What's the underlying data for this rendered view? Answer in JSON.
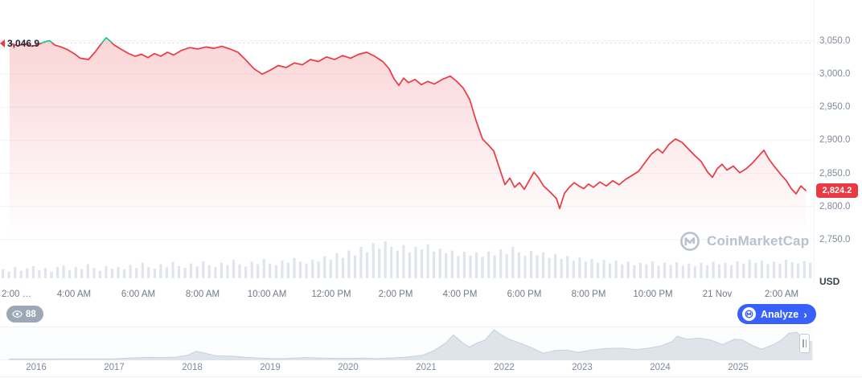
{
  "colors": {
    "line_red": "#ea3943",
    "line_green": "#16c784",
    "accent_blue": "#3861fb",
    "badge_red": "#ea3943",
    "axis_text": "#808a9d",
    "volume_bar": "#e0e5ed",
    "nav_fill": "#dfe4eb",
    "nav_stroke": "#c9d0da"
  },
  "watermark": {
    "text": "CoinMarketCap"
  },
  "buttons": {
    "watch_count": "88",
    "analyze_label": "Analyze",
    "analyze_chevron": "›"
  },
  "axis": {
    "unit_label": "USD"
  },
  "chart_data": {
    "type": "line",
    "unit": "USD",
    "reference_open_price": 3046.9,
    "open_price_label": "3,046.9",
    "last_price": 2824.2,
    "last_price_label": "2,824.2",
    "ylim": [
      2750,
      3050
    ],
    "xlim_hours": [
      0,
      24.75
    ],
    "grid": "horizontal",
    "legend": "none",
    "y_ticks": [
      {
        "value": 3050,
        "label": "3,050.0"
      },
      {
        "value": 3000,
        "label": "3,000.0"
      },
      {
        "value": 2950,
        "label": "2,950.0"
      },
      {
        "value": 2900,
        "label": "2,900.0"
      },
      {
        "value": 2850,
        "label": "2,850.0"
      },
      {
        "value": 2800,
        "label": "2,800.0"
      },
      {
        "value": 2750,
        "label": "2,750.0"
      }
    ],
    "x_ticks": [
      {
        "t": 0,
        "label": "2:00 …"
      },
      {
        "t": 2,
        "label": "4:00 AM"
      },
      {
        "t": 4,
        "label": "6:00 AM"
      },
      {
        "t": 6,
        "label": "8:00 AM"
      },
      {
        "t": 8,
        "label": "10:00 AM"
      },
      {
        "t": 10,
        "label": "12:00 PM"
      },
      {
        "t": 12,
        "label": "2:00 PM"
      },
      {
        "t": 14,
        "label": "4:00 PM"
      },
      {
        "t": 16,
        "label": "6:00 PM"
      },
      {
        "t": 18,
        "label": "8:00 PM"
      },
      {
        "t": 20,
        "label": "10:00 PM"
      },
      {
        "t": 22,
        "label": "21 Nov"
      },
      {
        "t": 24,
        "label": "2:00 AM"
      }
    ],
    "series": [
      {
        "name": "price_usd",
        "points": [
          [
            0,
            3046.9
          ],
          [
            0.25,
            3043
          ],
          [
            0.5,
            3046
          ],
          [
            0.7,
            3042
          ],
          [
            0.9,
            3045
          ],
          [
            1.1,
            3049
          ],
          [
            1.25,
            3050.5
          ],
          [
            1.4,
            3044
          ],
          [
            1.6,
            3041
          ],
          [
            1.8,
            3037
          ],
          [
            2.0,
            3031
          ],
          [
            2.2,
            3024
          ],
          [
            2.45,
            3022
          ],
          [
            2.65,
            3033
          ],
          [
            2.85,
            3046
          ],
          [
            3.0,
            3055
          ],
          [
            3.1,
            3051
          ],
          [
            3.25,
            3044
          ],
          [
            3.45,
            3038
          ],
          [
            3.7,
            3031
          ],
          [
            3.9,
            3027
          ],
          [
            4.1,
            3030
          ],
          [
            4.3,
            3025
          ],
          [
            4.5,
            3031
          ],
          [
            4.7,
            3027
          ],
          [
            4.9,
            3033
          ],
          [
            5.1,
            3029
          ],
          [
            5.35,
            3036
          ],
          [
            5.6,
            3040
          ],
          [
            5.85,
            3038
          ],
          [
            6.1,
            3041
          ],
          [
            6.35,
            3039
          ],
          [
            6.6,
            3042
          ],
          [
            6.85,
            3038
          ],
          [
            7.1,
            3033
          ],
          [
            7.35,
            3021
          ],
          [
            7.6,
            3008
          ],
          [
            7.85,
            3000
          ],
          [
            8.1,
            3006
          ],
          [
            8.35,
            3013
          ],
          [
            8.6,
            3010
          ],
          [
            8.85,
            3017
          ],
          [
            9.1,
            3014
          ],
          [
            9.35,
            3022
          ],
          [
            9.6,
            3019
          ],
          [
            9.85,
            3026
          ],
          [
            10.1,
            3022
          ],
          [
            10.35,
            3028
          ],
          [
            10.6,
            3024
          ],
          [
            10.85,
            3030
          ],
          [
            11.1,
            3033
          ],
          [
            11.35,
            3027
          ],
          [
            11.6,
            3019
          ],
          [
            11.8,
            3008
          ],
          [
            11.95,
            2993
          ],
          [
            12.1,
            2983
          ],
          [
            12.25,
            2994
          ],
          [
            12.4,
            2987
          ],
          [
            12.6,
            2992
          ],
          [
            12.8,
            2984
          ],
          [
            13.0,
            2989
          ],
          [
            13.2,
            2985
          ],
          [
            13.45,
            2992
          ],
          [
            13.7,
            2997
          ],
          [
            13.9,
            2989
          ],
          [
            14.1,
            2979
          ],
          [
            14.3,
            2962
          ],
          [
            14.5,
            2930
          ],
          [
            14.7,
            2902
          ],
          [
            14.9,
            2892
          ],
          [
            15.05,
            2884
          ],
          [
            15.2,
            2862
          ],
          [
            15.4,
            2833
          ],
          [
            15.55,
            2843
          ],
          [
            15.7,
            2829
          ],
          [
            15.85,
            2836
          ],
          [
            16.0,
            2826
          ],
          [
            16.15,
            2839
          ],
          [
            16.3,
            2852
          ],
          [
            16.45,
            2843
          ],
          [
            16.6,
            2831
          ],
          [
            16.8,
            2822
          ],
          [
            17.0,
            2812
          ],
          [
            17.1,
            2797
          ],
          [
            17.25,
            2820
          ],
          [
            17.4,
            2829
          ],
          [
            17.55,
            2836
          ],
          [
            17.7,
            2831
          ],
          [
            17.85,
            2827
          ],
          [
            18.0,
            2834
          ],
          [
            18.15,
            2829
          ],
          [
            18.35,
            2837
          ],
          [
            18.55,
            2831
          ],
          [
            18.75,
            2839
          ],
          [
            18.95,
            2833
          ],
          [
            19.15,
            2841
          ],
          [
            19.35,
            2847
          ],
          [
            19.55,
            2853
          ],
          [
            19.75,
            2866
          ],
          [
            19.95,
            2879
          ],
          [
            20.15,
            2887
          ],
          [
            20.3,
            2881
          ],
          [
            20.5,
            2894
          ],
          [
            20.7,
            2902
          ],
          [
            20.9,
            2897
          ],
          [
            21.1,
            2887
          ],
          [
            21.3,
            2877
          ],
          [
            21.5,
            2868
          ],
          [
            21.7,
            2852
          ],
          [
            21.85,
            2844
          ],
          [
            22.0,
            2857
          ],
          [
            22.15,
            2864
          ],
          [
            22.3,
            2855
          ],
          [
            22.5,
            2861
          ],
          [
            22.7,
            2851
          ],
          [
            22.9,
            2857
          ],
          [
            23.1,
            2866
          ],
          [
            23.3,
            2877
          ],
          [
            23.45,
            2885
          ],
          [
            23.6,
            2872
          ],
          [
            23.8,
            2859
          ],
          [
            24.0,
            2847
          ],
          [
            24.15,
            2839
          ],
          [
            24.3,
            2827
          ],
          [
            24.45,
            2819
          ],
          [
            24.6,
            2831
          ],
          [
            24.75,
            2824.2
          ]
        ]
      }
    ],
    "volume_relative": [
      0.25,
      0.18,
      0.3,
      0.2,
      0.27,
      0.33,
      0.22,
      0.28,
      0.18,
      0.3,
      0.35,
      0.22,
      0.3,
      0.25,
      0.38,
      0.28,
      0.2,
      0.33,
      0.26,
      0.3,
      0.24,
      0.36,
      0.28,
      0.42,
      0.3,
      0.26,
      0.38,
      0.3,
      0.45,
      0.33,
      0.28,
      0.4,
      0.32,
      0.46,
      0.35,
      0.3,
      0.42,
      0.36,
      0.5,
      0.38,
      0.32,
      0.45,
      0.38,
      0.52,
      0.4,
      0.35,
      0.48,
      0.42,
      0.55,
      0.45,
      0.4,
      0.5,
      0.45,
      0.6,
      0.5,
      0.68,
      0.55,
      0.75,
      0.62,
      0.85,
      0.7,
      0.95,
      0.8,
      1.0,
      0.85,
      0.75,
      0.9,
      0.7,
      0.85,
      0.78,
      0.92,
      0.72,
      0.8,
      0.68,
      0.75,
      0.6,
      0.72,
      0.62,
      0.7,
      0.58,
      0.72,
      0.62,
      0.78,
      0.65,
      0.85,
      0.7,
      0.6,
      0.74,
      0.62,
      0.7,
      0.55,
      0.65,
      0.52,
      0.6,
      0.48,
      0.56,
      0.45,
      0.52,
      0.42,
      0.5,
      0.4,
      0.48,
      0.38,
      0.45,
      0.35,
      0.42,
      0.38,
      0.46,
      0.34,
      0.42,
      0.36,
      0.44,
      0.34,
      0.4,
      0.32,
      0.42,
      0.35,
      0.45,
      0.38,
      0.42,
      0.36,
      0.46,
      0.4,
      0.5,
      0.42,
      0.48,
      0.38,
      0.45,
      0.4,
      0.5,
      0.44,
      0.4,
      0.46,
      0.42
    ]
  },
  "navigator": {
    "type": "area",
    "years": [
      "2016",
      "2017",
      "2018",
      "2019",
      "2020",
      "2021",
      "2022",
      "2023",
      "2024",
      "2025"
    ],
    "points": [
      [
        2015.65,
        0.015
      ],
      [
        2016.0,
        0.015
      ],
      [
        2016.4,
        0.02
      ],
      [
        2016.8,
        0.02
      ],
      [
        2017.0,
        0.025
      ],
      [
        2017.2,
        0.05
      ],
      [
        2017.45,
        0.075
      ],
      [
        2017.6,
        0.06
      ],
      [
        2017.8,
        0.08
      ],
      [
        2017.95,
        0.15
      ],
      [
        2018.05,
        0.28
      ],
      [
        2018.15,
        0.22
      ],
      [
        2018.3,
        0.13
      ],
      [
        2018.5,
        0.11
      ],
      [
        2018.65,
        0.08
      ],
      [
        2018.85,
        0.05
      ],
      [
        2019.0,
        0.03
      ],
      [
        2019.2,
        0.035
      ],
      [
        2019.45,
        0.065
      ],
      [
        2019.6,
        0.05
      ],
      [
        2019.8,
        0.04
      ],
      [
        2020.0,
        0.035
      ],
      [
        2020.2,
        0.045
      ],
      [
        2020.35,
        0.03
      ],
      [
        2020.55,
        0.05
      ],
      [
        2020.75,
        0.08
      ],
      [
        2020.95,
        0.14
      ],
      [
        2021.1,
        0.3
      ],
      [
        2021.25,
        0.55
      ],
      [
        2021.35,
        0.83
      ],
      [
        2021.45,
        0.6
      ],
      [
        2021.55,
        0.42
      ],
      [
        2021.65,
        0.55
      ],
      [
        2021.75,
        0.65
      ],
      [
        2021.87,
        1.0
      ],
      [
        2021.95,
        0.85
      ],
      [
        2022.05,
        0.7
      ],
      [
        2022.2,
        0.55
      ],
      [
        2022.35,
        0.4
      ],
      [
        2022.5,
        0.21
      ],
      [
        2022.65,
        0.3
      ],
      [
        2022.8,
        0.32
      ],
      [
        2022.95,
        0.24
      ],
      [
        2023.1,
        0.31
      ],
      [
        2023.3,
        0.37
      ],
      [
        2023.5,
        0.38
      ],
      [
        2023.7,
        0.33
      ],
      [
        2023.85,
        0.38
      ],
      [
        2024.0,
        0.45
      ],
      [
        2024.15,
        0.6
      ],
      [
        2024.22,
        0.78
      ],
      [
        2024.35,
        0.68
      ],
      [
        2024.5,
        0.72
      ],
      [
        2024.65,
        0.65
      ],
      [
        2024.8,
        0.5
      ],
      [
        2024.95,
        0.68
      ],
      [
        2025.05,
        0.66
      ],
      [
        2025.2,
        0.45
      ],
      [
        2025.3,
        0.35
      ],
      [
        2025.45,
        0.5
      ],
      [
        2025.55,
        0.65
      ],
      [
        2025.65,
        0.88
      ],
      [
        2025.75,
        0.92
      ],
      [
        2025.85,
        0.68
      ],
      [
        2025.95,
        0.58
      ]
    ]
  }
}
